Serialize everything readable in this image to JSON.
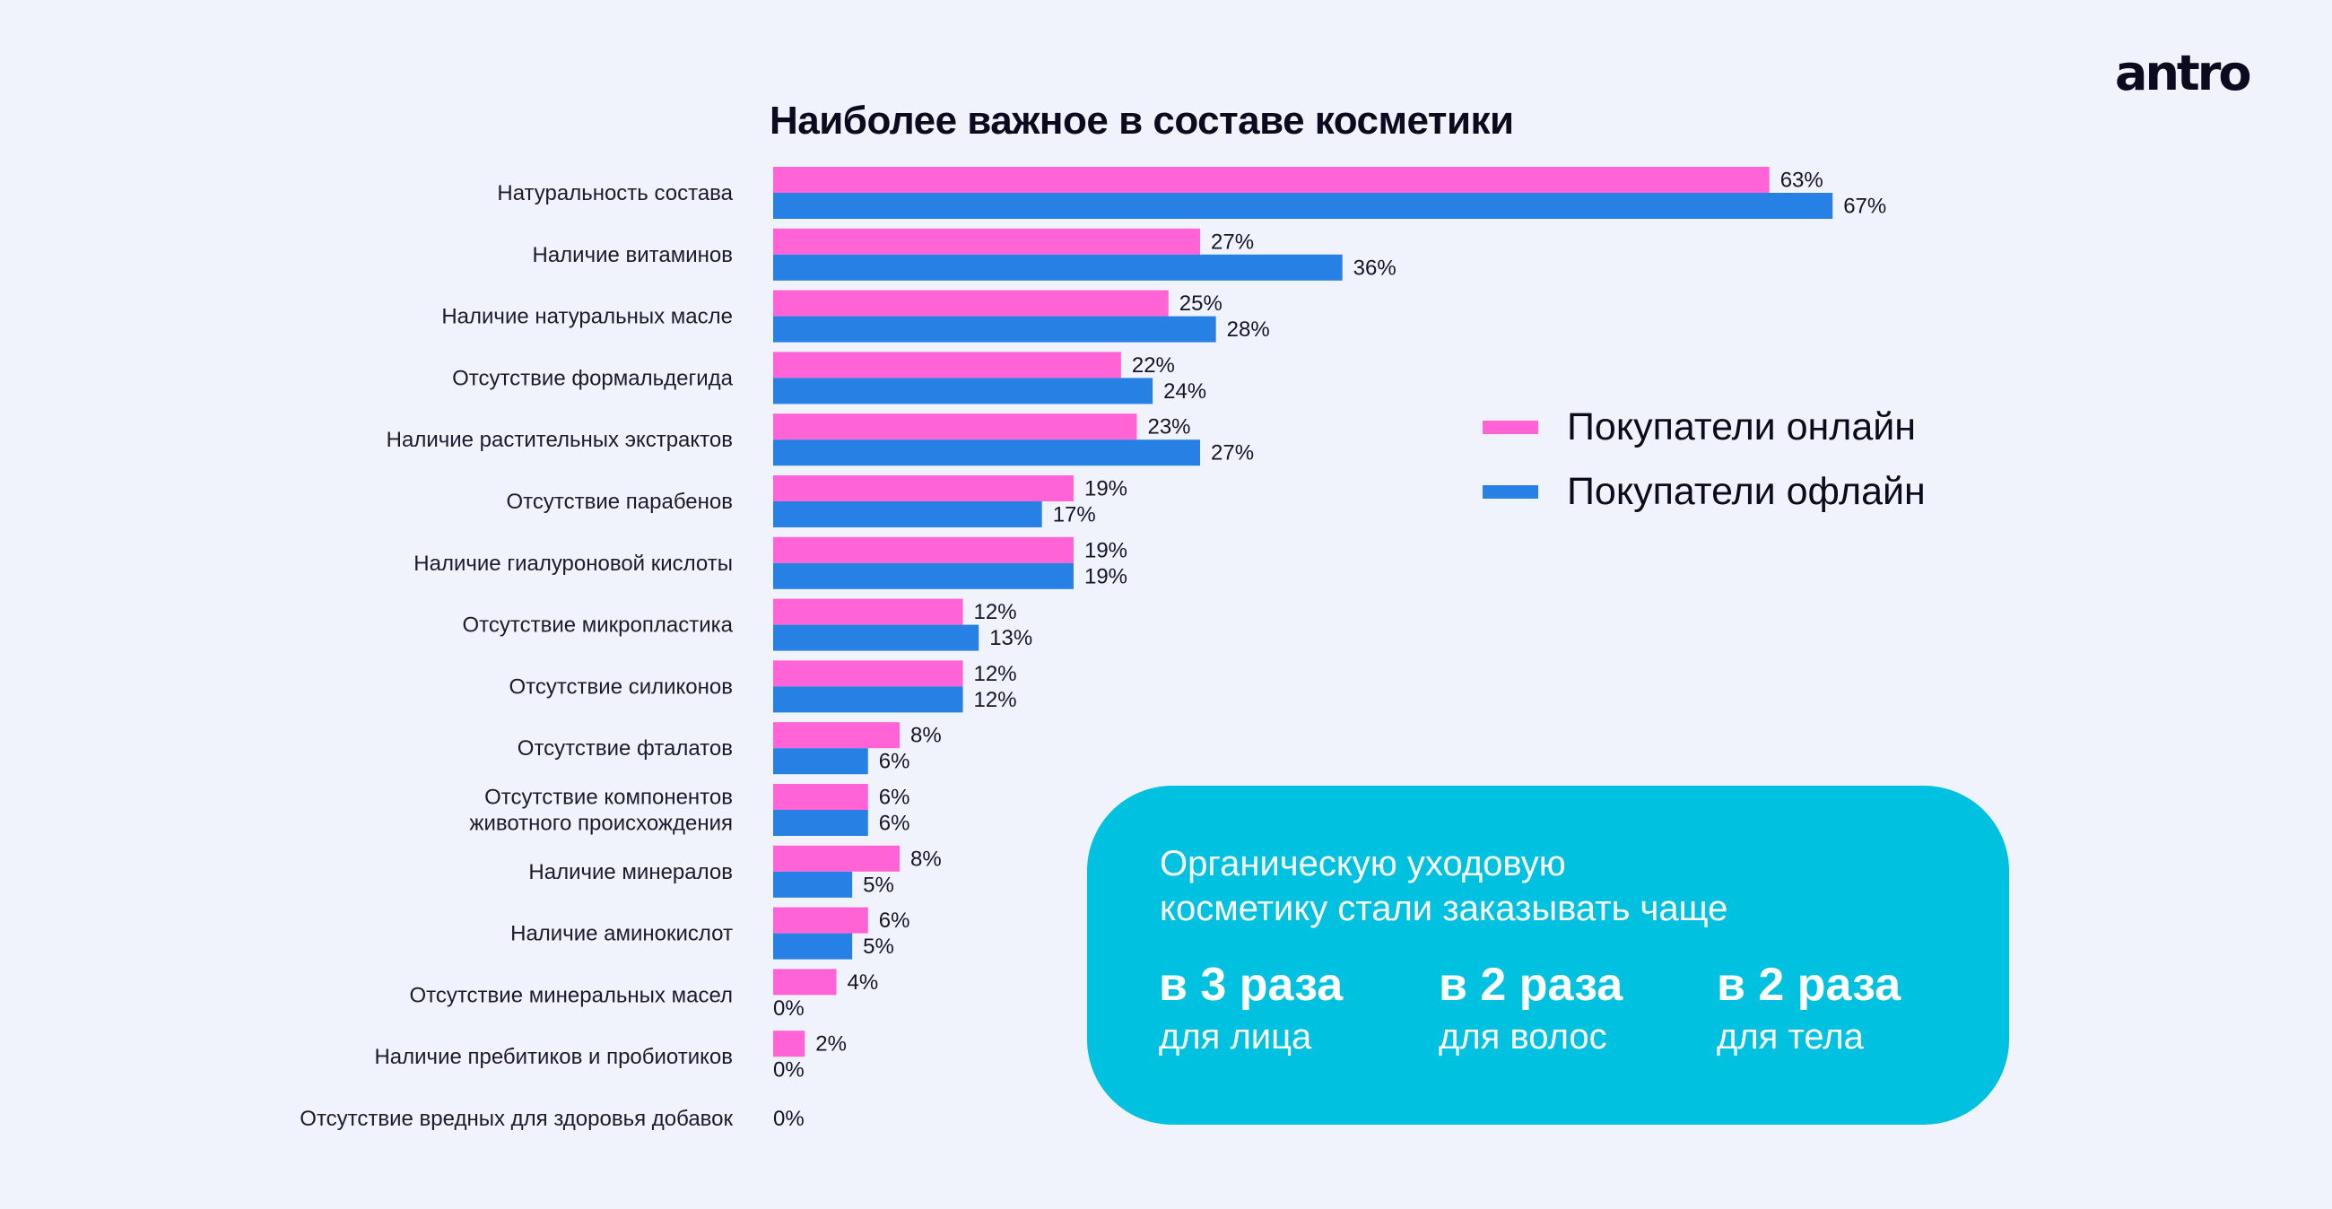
{
  "brand": {
    "logo_text": "antro"
  },
  "colors": {
    "online": "#ff63d6",
    "offline": "#2780e3",
    "card": "#00c1e0",
    "background": "#f0f3fc"
  },
  "chart_data": {
    "type": "bar",
    "orientation": "horizontal",
    "title": "Наиболее важное в составе косметики",
    "xlabel": "",
    "ylabel": "",
    "xlim": [
      0,
      70
    ],
    "grid": false,
    "legend_position": "right",
    "categories": [
      "Натуральность состава",
      "Наличие витаминов",
      "Наличие натуральных масле",
      "Отсутствие формальдегида",
      "Наличие растительных экстрактов",
      "Отсутствие парабенов",
      "Наличие гиалуроновой кислоты",
      "Отсутствие микропластика",
      "Отсутствие силиконов",
      "Отсутствие фталатов",
      "Отсутствие компонентов\nживотного происхождения",
      "Наличие минералов",
      "Наличие аминокислот",
      "Отсутствие минеральных масел",
      "Наличие пребитиков и пробиотиков",
      "Отсутствие вредных для здоровья добавок"
    ],
    "series": [
      {
        "name": "Покупатели онлайн",
        "color": "#ff63d6",
        "values": [
          63,
          27,
          25,
          22,
          23,
          19,
          19,
          12,
          12,
          8,
          6,
          8,
          6,
          4,
          2,
          0
        ]
      },
      {
        "name": "Покупатели офлайн",
        "color": "#2780e3",
        "values": [
          67,
          36,
          28,
          24,
          27,
          17,
          19,
          13,
          12,
          6,
          6,
          5,
          5,
          0,
          0,
          0
        ]
      }
    ],
    "value_suffix": "%",
    "single_label_rows": {
      "15": "0%"
    }
  },
  "callout": {
    "headline_line1": "Органическую уходовую",
    "headline_line2": "косметику стали заказывать чаще",
    "stats": [
      {
        "value": "в 3 раза",
        "label": "для лица"
      },
      {
        "value": "в 2 раза",
        "label": "для волос"
      },
      {
        "value": "в 2 раза",
        "label": "для тела"
      }
    ]
  }
}
